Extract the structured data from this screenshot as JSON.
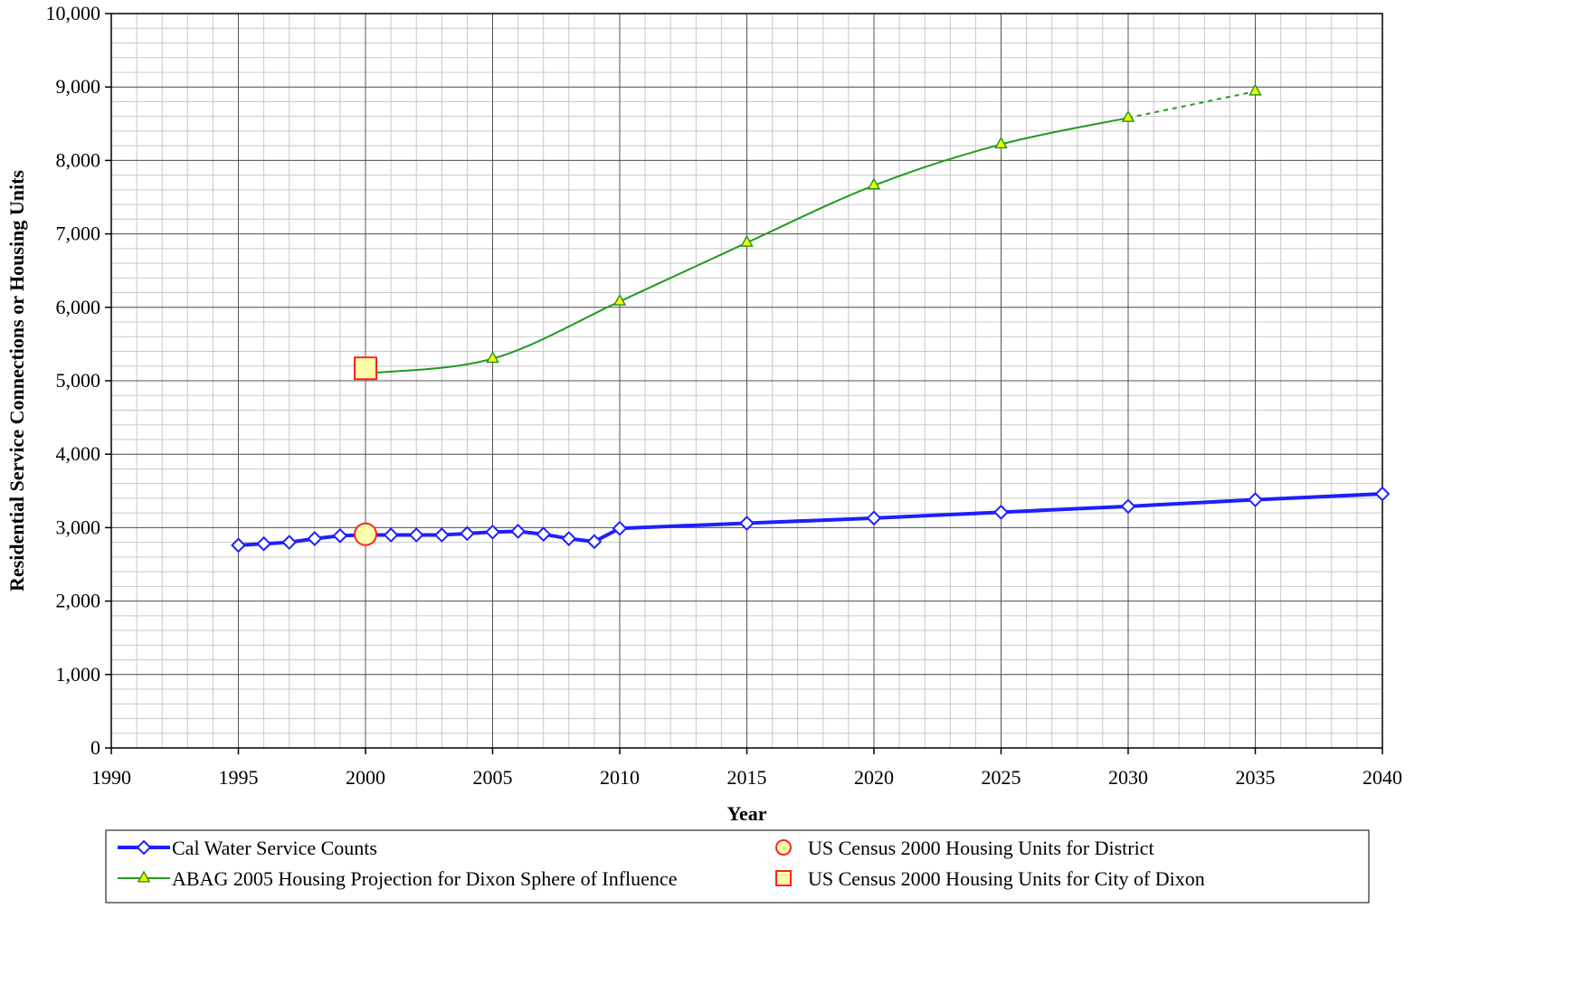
{
  "chart_data": {
    "type": "line",
    "xlabel": "Year",
    "ylabel": "Residential Service Connections or Housing Units",
    "xlim": [
      1990,
      2040
    ],
    "ylim": [
      0,
      10000
    ],
    "x_ticks": [
      1990,
      1995,
      2000,
      2005,
      2010,
      2015,
      2020,
      2025,
      2030,
      2035,
      2040
    ],
    "x_tick_labels": [
      "1990",
      "1995",
      "2000",
      "2005",
      "2010",
      "2015",
      "2020",
      "2025",
      "2030",
      "2035",
      "2040"
    ],
    "y_ticks": [
      0,
      1000,
      2000,
      3000,
      4000,
      5000,
      6000,
      7000,
      8000,
      9000,
      10000
    ],
    "y_tick_labels": [
      "0",
      "1,000",
      "2,000",
      "3,000",
      "4,000",
      "5,000",
      "6,000",
      "7,000",
      "8,000",
      "9,000",
      "10,000"
    ],
    "grid": true,
    "legend_position": "bottom",
    "series": [
      {
        "name": "Cal Water Service Counts",
        "color": "#1f1fff",
        "marker": "diamond",
        "x": [
          1995,
          1996,
          1997,
          1998,
          1999,
          2000,
          2001,
          2002,
          2003,
          2004,
          2005,
          2006,
          2007,
          2008,
          2009,
          2010,
          2015,
          2020,
          2025,
          2030,
          2035,
          2040
        ],
        "y": [
          2760,
          2780,
          2800,
          2850,
          2890,
          2900,
          2900,
          2900,
          2900,
          2920,
          2940,
          2950,
          2910,
          2850,
          2810,
          2990,
          3060,
          3130,
          3210,
          3290,
          3380,
          3460
        ]
      },
      {
        "name": "ABAG 2005 Housing Projection for Dixon Sphere of Influence",
        "color": "#229922",
        "marker": "triangle",
        "x": [
          2000,
          2005,
          2010,
          2015,
          2020,
          2025,
          2030,
          2035
        ],
        "y": [
          5100,
          5300,
          6080,
          6880,
          7660,
          8220,
          8580,
          8940
        ],
        "marker_x": [
          2005,
          2010,
          2015,
          2020,
          2025,
          2030,
          2035
        ],
        "dashed_from": 2030
      },
      {
        "name": "US Census 2000 Housing Units for District",
        "color": "#ff2222",
        "marker": "circle",
        "x": [
          2000
        ],
        "y": [
          2910
        ]
      },
      {
        "name": "US Census 2000 Housing Units for City of Dixon",
        "color": "#ff2222",
        "marker": "square",
        "x": [
          2000
        ],
        "y": [
          5170
        ]
      }
    ]
  }
}
